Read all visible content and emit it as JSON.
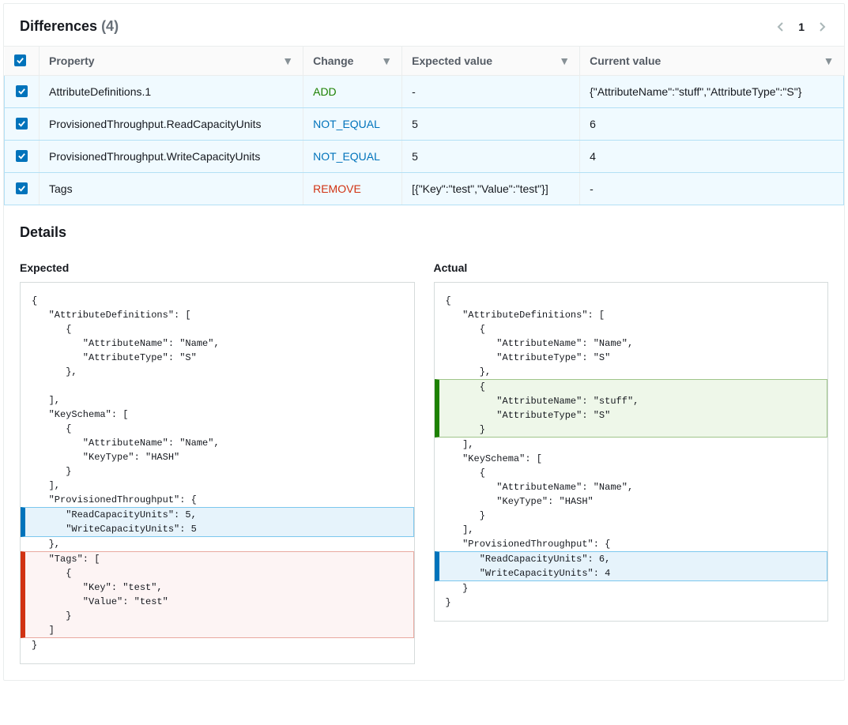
{
  "header": {
    "title": "Differences",
    "count": "(4)",
    "page": "1"
  },
  "columns": {
    "property": "Property",
    "change": "Change",
    "expected": "Expected value",
    "current": "Current value"
  },
  "rows": [
    {
      "property": "AttributeDefinitions.1",
      "change": "ADD",
      "change_class": "chg-add",
      "expected": "-",
      "current": "{\"AttributeName\":\"stuff\",\"AttributeType\":\"S\"}"
    },
    {
      "property": "ProvisionedThroughput.ReadCapacityUnits",
      "change": "NOT_EQUAL",
      "change_class": "chg-not_equal",
      "expected": "5",
      "current": "6"
    },
    {
      "property": "ProvisionedThroughput.WriteCapacityUnits",
      "change": "NOT_EQUAL",
      "change_class": "chg-not_equal",
      "expected": "5",
      "current": "4"
    },
    {
      "property": "Tags",
      "change": "REMOVE",
      "change_class": "chg-remove",
      "expected": "[{\"Key\":\"test\",\"Value\":\"test\"}]",
      "current": "-"
    }
  ],
  "details": {
    "title": "Details",
    "expected_label": "Expected",
    "actual_label": "Actual",
    "expected_lines": [
      {
        "t": "{",
        "hl": null
      },
      {
        "t": "   \"AttributeDefinitions\": [",
        "hl": null
      },
      {
        "t": "      {",
        "hl": null
      },
      {
        "t": "         \"AttributeName\": \"Name\",",
        "hl": null
      },
      {
        "t": "         \"AttributeType\": \"S\"",
        "hl": null
      },
      {
        "t": "      },",
        "hl": null
      },
      {
        "t": "",
        "hl": null
      },
      {
        "t": "   ],",
        "hl": null
      },
      {
        "t": "   \"KeySchema\": [",
        "hl": null
      },
      {
        "t": "      {",
        "hl": null
      },
      {
        "t": "         \"AttributeName\": \"Name\",",
        "hl": null
      },
      {
        "t": "         \"KeyType\": \"HASH\"",
        "hl": null
      },
      {
        "t": "      }",
        "hl": null
      },
      {
        "t": "   ],",
        "hl": null
      },
      {
        "t": "   \"ProvisionedThroughput\": {",
        "hl": null
      },
      {
        "t": "      \"ReadCapacityUnits\": 5,",
        "hl": "blue"
      },
      {
        "t": "      \"WriteCapacityUnits\": 5",
        "hl": "blue"
      },
      {
        "t": "   },",
        "hl": null
      },
      {
        "t": "   \"Tags\": [",
        "hl": "red"
      },
      {
        "t": "      {",
        "hl": "red"
      },
      {
        "t": "         \"Key\": \"test\",",
        "hl": "red"
      },
      {
        "t": "         \"Value\": \"test\"",
        "hl": "red"
      },
      {
        "t": "      }",
        "hl": "red"
      },
      {
        "t": "   ]",
        "hl": "red"
      },
      {
        "t": "}",
        "hl": null
      }
    ],
    "actual_lines": [
      {
        "t": "{",
        "hl": null
      },
      {
        "t": "   \"AttributeDefinitions\": [",
        "hl": null
      },
      {
        "t": "      {",
        "hl": null
      },
      {
        "t": "         \"AttributeName\": \"Name\",",
        "hl": null
      },
      {
        "t": "         \"AttributeType\": \"S\"",
        "hl": null
      },
      {
        "t": "      },",
        "hl": null
      },
      {
        "t": "      {",
        "hl": "green"
      },
      {
        "t": "         \"AttributeName\": \"stuff\",",
        "hl": "green"
      },
      {
        "t": "         \"AttributeType\": \"S\"",
        "hl": "green"
      },
      {
        "t": "      }",
        "hl": "green"
      },
      {
        "t": "   ],",
        "hl": null
      },
      {
        "t": "   \"KeySchema\": [",
        "hl": null
      },
      {
        "t": "      {",
        "hl": null
      },
      {
        "t": "         \"AttributeName\": \"Name\",",
        "hl": null
      },
      {
        "t": "         \"KeyType\": \"HASH\"",
        "hl": null
      },
      {
        "t": "      }",
        "hl": null
      },
      {
        "t": "   ],",
        "hl": null
      },
      {
        "t": "   \"ProvisionedThroughput\": {",
        "hl": null
      },
      {
        "t": "      \"ReadCapacityUnits\": 6,",
        "hl": "blue"
      },
      {
        "t": "      \"WriteCapacityUnits\": 4",
        "hl": "blue"
      },
      {
        "t": "   }",
        "hl": null
      },
      {
        "t": "}",
        "hl": null
      }
    ]
  },
  "colors": {
    "add": "#1d8102",
    "not_equal": "#0073bb",
    "remove": "#d13212",
    "row_selected_bg": "#f0faff",
    "row_selected_border": "#b3e0f5",
    "border": "#eaeded"
  }
}
